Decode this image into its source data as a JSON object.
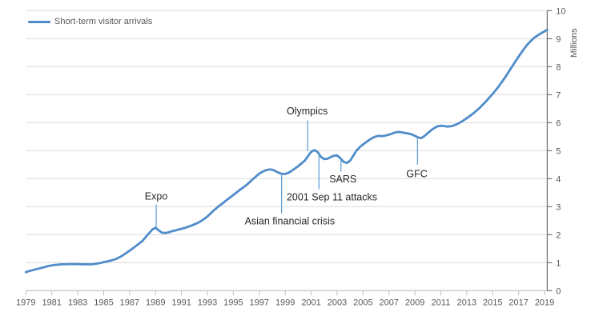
{
  "legend": {
    "label": "Short-term visitor arrivals"
  },
  "chart_data": {
    "type": "line",
    "title": "",
    "xlabel": "",
    "ylabel": "Millions",
    "xlim": [
      1979,
      2019.2
    ],
    "ylim": [
      0,
      10
    ],
    "grid": "horizontal",
    "legend_position": "top-left",
    "xticks": [
      1979,
      1981,
      1983,
      1985,
      1987,
      1989,
      1991,
      1993,
      1995,
      1997,
      1999,
      2001,
      2003,
      2005,
      2007,
      2009,
      2011,
      2013,
      2015,
      2017,
      2019
    ],
    "yticks": [
      0,
      1,
      2,
      3,
      4,
      5,
      6,
      7,
      8,
      9,
      10
    ],
    "colors": {
      "line": "#4F8CC9",
      "leader": "#5B9BD5",
      "gridline": "#D9D9D9",
      "axis_right": "#595959",
      "axis_bottom": "#BFBFBF",
      "tick_label": "#595959",
      "annotation_text": "#262626"
    },
    "series": [
      {
        "name": "Short-term visitor arrivals",
        "color": "#4F8CC9",
        "points": [
          [
            1979,
            0.66
          ],
          [
            1979.25,
            0.7
          ],
          [
            1979.5,
            0.73
          ],
          [
            1979.75,
            0.76
          ],
          [
            1980,
            0.79
          ],
          [
            1980.25,
            0.82
          ],
          [
            1980.5,
            0.85
          ],
          [
            1980.75,
            0.88
          ],
          [
            1981,
            0.9
          ],
          [
            1981.25,
            0.92
          ],
          [
            1981.5,
            0.93
          ],
          [
            1981.75,
            0.94
          ],
          [
            1982,
            0.94
          ],
          [
            1982.25,
            0.95
          ],
          [
            1982.5,
            0.95
          ],
          [
            1982.75,
            0.95
          ],
          [
            1983,
            0.95
          ],
          [
            1983.25,
            0.94
          ],
          [
            1983.5,
            0.94
          ],
          [
            1983.75,
            0.94
          ],
          [
            1984,
            0.94
          ],
          [
            1984.25,
            0.95
          ],
          [
            1984.5,
            0.97
          ],
          [
            1984.75,
            0.99
          ],
          [
            1985,
            1.02
          ],
          [
            1985.25,
            1.04
          ],
          [
            1985.5,
            1.07
          ],
          [
            1985.75,
            1.1
          ],
          [
            1986,
            1.14
          ],
          [
            1986.25,
            1.2
          ],
          [
            1986.5,
            1.27
          ],
          [
            1986.75,
            1.35
          ],
          [
            1987,
            1.43
          ],
          [
            1987.25,
            1.51
          ],
          [
            1987.5,
            1.6
          ],
          [
            1987.75,
            1.69
          ],
          [
            1988,
            1.78
          ],
          [
            1988.25,
            1.92
          ],
          [
            1988.5,
            2.05
          ],
          [
            1988.75,
            2.18
          ],
          [
            1989,
            2.25
          ],
          [
            1989.25,
            2.15
          ],
          [
            1989.5,
            2.07
          ],
          [
            1989.75,
            2.06
          ],
          [
            1990,
            2.08
          ],
          [
            1990.25,
            2.12
          ],
          [
            1990.5,
            2.15
          ],
          [
            1990.75,
            2.18
          ],
          [
            1991,
            2.21
          ],
          [
            1991.25,
            2.24
          ],
          [
            1991.5,
            2.28
          ],
          [
            1991.75,
            2.32
          ],
          [
            1992,
            2.37
          ],
          [
            1992.25,
            2.42
          ],
          [
            1992.5,
            2.48
          ],
          [
            1992.75,
            2.56
          ],
          [
            1993,
            2.65
          ],
          [
            1993.25,
            2.76
          ],
          [
            1993.5,
            2.87
          ],
          [
            1993.75,
            2.97
          ],
          [
            1994,
            3.06
          ],
          [
            1994.25,
            3.15
          ],
          [
            1994.5,
            3.24
          ],
          [
            1994.75,
            3.33
          ],
          [
            1995,
            3.42
          ],
          [
            1995.25,
            3.51
          ],
          [
            1995.5,
            3.6
          ],
          [
            1995.75,
            3.68
          ],
          [
            1996,
            3.77
          ],
          [
            1996.25,
            3.87
          ],
          [
            1996.5,
            3.98
          ],
          [
            1996.75,
            4.08
          ],
          [
            1997,
            4.18
          ],
          [
            1997.25,
            4.25
          ],
          [
            1997.5,
            4.3
          ],
          [
            1997.75,
            4.33
          ],
          [
            1998,
            4.32
          ],
          [
            1998.25,
            4.27
          ],
          [
            1998.5,
            4.21
          ],
          [
            1998.75,
            4.17
          ],
          [
            1999,
            4.17
          ],
          [
            1999.25,
            4.21
          ],
          [
            1999.5,
            4.28
          ],
          [
            1999.75,
            4.36
          ],
          [
            2000,
            4.45
          ],
          [
            2000.25,
            4.54
          ],
          [
            2000.5,
            4.64
          ],
          [
            2000.75,
            4.8
          ],
          [
            2001,
            4.96
          ],
          [
            2001.25,
            5.02
          ],
          [
            2001.5,
            4.95
          ],
          [
            2001.75,
            4.78
          ],
          [
            2002,
            4.7
          ],
          [
            2002.25,
            4.71
          ],
          [
            2002.5,
            4.77
          ],
          [
            2002.75,
            4.82
          ],
          [
            2003,
            4.83
          ],
          [
            2003.25,
            4.73
          ],
          [
            2003.5,
            4.6
          ],
          [
            2003.75,
            4.56
          ],
          [
            2004,
            4.64
          ],
          [
            2004.25,
            4.82
          ],
          [
            2004.5,
            5.0
          ],
          [
            2004.75,
            5.13
          ],
          [
            2005,
            5.22
          ],
          [
            2005.25,
            5.31
          ],
          [
            2005.5,
            5.39
          ],
          [
            2005.75,
            5.46
          ],
          [
            2006,
            5.51
          ],
          [
            2006.25,
            5.53
          ],
          [
            2006.5,
            5.52
          ],
          [
            2006.75,
            5.54
          ],
          [
            2007,
            5.57
          ],
          [
            2007.25,
            5.61
          ],
          [
            2007.5,
            5.65
          ],
          [
            2007.75,
            5.67
          ],
          [
            2008,
            5.65
          ],
          [
            2008.25,
            5.63
          ],
          [
            2008.5,
            5.61
          ],
          [
            2008.75,
            5.58
          ],
          [
            2009,
            5.53
          ],
          [
            2009.25,
            5.47
          ],
          [
            2009.5,
            5.45
          ],
          [
            2009.75,
            5.53
          ],
          [
            2010,
            5.63
          ],
          [
            2010.25,
            5.73
          ],
          [
            2010.5,
            5.81
          ],
          [
            2010.75,
            5.87
          ],
          [
            2011,
            5.89
          ],
          [
            2011.25,
            5.88
          ],
          [
            2011.5,
            5.86
          ],
          [
            2011.75,
            5.87
          ],
          [
            2012,
            5.9
          ],
          [
            2012.25,
            5.95
          ],
          [
            2012.5,
            6.01
          ],
          [
            2012.75,
            6.08
          ],
          [
            2013,
            6.16
          ],
          [
            2013.25,
            6.24
          ],
          [
            2013.5,
            6.33
          ],
          [
            2013.75,
            6.43
          ],
          [
            2014,
            6.53
          ],
          [
            2014.25,
            6.65
          ],
          [
            2014.5,
            6.77
          ],
          [
            2014.75,
            6.9
          ],
          [
            2015,
            7.03
          ],
          [
            2015.25,
            7.17
          ],
          [
            2015.5,
            7.32
          ],
          [
            2015.75,
            7.48
          ],
          [
            2016,
            7.65
          ],
          [
            2016.25,
            7.83
          ],
          [
            2016.5,
            8.01
          ],
          [
            2016.75,
            8.19
          ],
          [
            2017,
            8.36
          ],
          [
            2017.25,
            8.53
          ],
          [
            2017.5,
            8.69
          ],
          [
            2017.75,
            8.83
          ],
          [
            2018,
            8.95
          ],
          [
            2018.25,
            9.05
          ],
          [
            2018.5,
            9.13
          ],
          [
            2018.75,
            9.2
          ],
          [
            2019,
            9.26
          ],
          [
            2019.2,
            9.32
          ]
        ]
      }
    ],
    "annotations": [
      {
        "label": "Expo",
        "text_x": 1989.05,
        "text_y": 3.38,
        "leader_x": 1989.05,
        "leader_y_from": 3.08,
        "leader_y_to": 2.28
      },
      {
        "label": "Olympics",
        "text_x": 2000.7,
        "text_y": 6.42,
        "leader_x": 2000.73,
        "leader_y_from": 6.08,
        "leader_y_to": 4.98
      },
      {
        "label": "Asian financial crisis",
        "text_x": 1999.35,
        "text_y": 2.5,
        "leader_x": 1998.72,
        "leader_y_from": 2.76,
        "leader_y_to": 4.15
      },
      {
        "label": "2001 Sep 11 attacks",
        "text_x": 2002.6,
        "text_y": 3.35,
        "leader_x": 2001.6,
        "leader_y_from": 3.62,
        "leader_y_to": 4.86
      },
      {
        "label": "SARS",
        "text_x": 2003.45,
        "text_y": 4.0,
        "leader_x": 2003.3,
        "leader_y_from": 4.25,
        "leader_y_to": 4.68
      },
      {
        "label": "GFC",
        "text_x": 2009.15,
        "text_y": 4.18,
        "leader_x": 2009.2,
        "leader_y_from": 4.5,
        "leader_y_to": 5.46
      }
    ]
  }
}
